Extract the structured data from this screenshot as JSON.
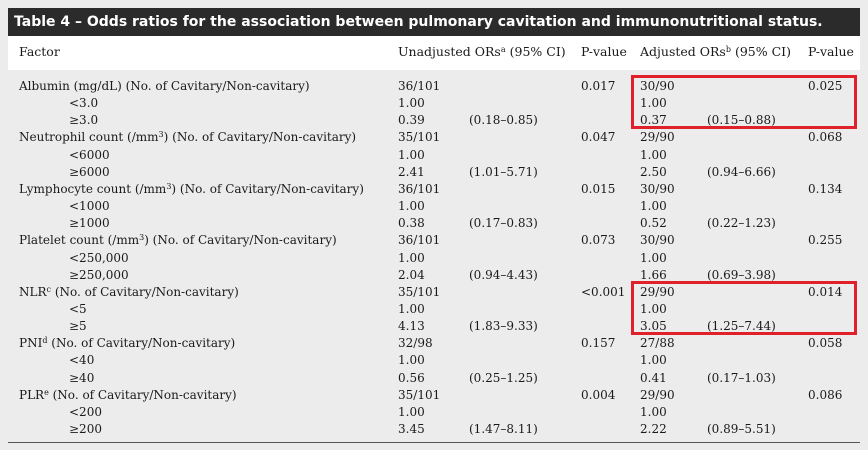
{
  "title": "Table 4 – Odds ratios for the association between pulmonary cavitation and immunonutritional status.",
  "headers": {
    "factor": "Factor",
    "unadjusted": "Unadjusted ORs",
    "unadjusted_sup": "a",
    "unadjusted_ci": "(95% CI)",
    "pvalue1": "P-value",
    "adjusted": "Adjusted ORs",
    "adjusted_sup": "b",
    "adjusted_ci": "(95% CI)",
    "pvalue2": "P-value"
  },
  "rows": [
    {
      "factor": "Albumin (mg/dL) (No. of Cavitary/Non-cavitary)",
      "sup": "",
      "u_or": "36/101",
      "u_ci": "",
      "p1": "0.017",
      "a_or": "30/90",
      "a_ci": "",
      "p2": "0.025"
    },
    {
      "factor": "<3.0",
      "sup": "",
      "u_or": "1.00",
      "u_ci": "",
      "p1": "",
      "a_or": "1.00",
      "a_ci": "",
      "p2": ""
    },
    {
      "factor": "≥3.0",
      "sup": "",
      "u_or": "0.39",
      "u_ci": "(0.18–0.85)",
      "p1": "",
      "a_or": "0.37",
      "a_ci": "(0.15–0.88)",
      "p2": ""
    },
    {
      "factor": "Neutrophil count (/mm",
      "sup": "3",
      "tail": ") (No. of Cavitary/Non-cavitary)",
      "u_or": "35/101",
      "u_ci": "",
      "p1": "0.047",
      "a_or": "29/90",
      "a_ci": "",
      "p2": "0.068"
    },
    {
      "factor": "<6000",
      "sup": "",
      "u_or": "1.00",
      "u_ci": "",
      "p1": "",
      "a_or": "1.00",
      "a_ci": "",
      "p2": ""
    },
    {
      "factor": "≥6000",
      "sup": "",
      "u_or": "2.41",
      "u_ci": "(1.01–5.71)",
      "p1": "",
      "a_or": "2.50",
      "a_ci": "(0.94–6.66)",
      "p2": ""
    },
    {
      "factor": "Lymphocyte count (/mm",
      "sup": "3",
      "tail": ") (No. of Cavitary/Non-cavitary)",
      "u_or": "36/101",
      "u_ci": "",
      "p1": "0.015",
      "a_or": "30/90",
      "a_ci": "",
      "p2": "0.134"
    },
    {
      "factor": "<1000",
      "sup": "",
      "u_or": "1.00",
      "u_ci": "",
      "p1": "",
      "a_or": "1.00",
      "a_ci": "",
      "p2": ""
    },
    {
      "factor": "≥1000",
      "sup": "",
      "u_or": "0.38",
      "u_ci": "(0.17–0.83)",
      "p1": "",
      "a_or": "0.52",
      "a_ci": "(0.22–1.23)",
      "p2": ""
    },
    {
      "factor": "Platelet count (/mm",
      "sup": "3",
      "tail": ") (No. of Cavitary/Non-cavitary)",
      "u_or": "36/101",
      "u_ci": "",
      "p1": "0.073",
      "a_or": "30/90",
      "a_ci": "",
      "p2": "0.255"
    },
    {
      "factor": "<250,000",
      "sup": "",
      "u_or": "1.00",
      "u_ci": "",
      "p1": "",
      "a_or": "1.00",
      "a_ci": "",
      "p2": ""
    },
    {
      "factor": "≥250,000",
      "sup": "",
      "u_or": "2.04",
      "u_ci": "(0.94–4.43)",
      "p1": "",
      "a_or": "1.66",
      "a_ci": "(0.69–3.98)",
      "p2": ""
    },
    {
      "factor": "NLR",
      "sup": "c",
      "tail": " (No. of Cavitary/Non-cavitary)",
      "u_or": "35/101",
      "u_ci": "",
      "p1": "<0.001",
      "a_or": "29/90",
      "a_ci": "",
      "p2": "0.014"
    },
    {
      "factor": "<5",
      "sup": "",
      "u_or": "1.00",
      "u_ci": "",
      "p1": "",
      "a_or": "1.00",
      "a_ci": "",
      "p2": ""
    },
    {
      "factor": "≥5",
      "sup": "",
      "u_or": "4.13",
      "u_ci": "(1.83–9.33)",
      "p1": "",
      "a_or": "3.05",
      "a_ci": "(1.25–7.44)",
      "p2": ""
    },
    {
      "factor": "PNI",
      "sup": "d",
      "tail": " (No. of Cavitary/Non-cavitary)",
      "u_or": "32/98",
      "u_ci": "",
      "p1": "0.157",
      "a_or": "27/88",
      "a_ci": "",
      "p2": "0.058"
    },
    {
      "factor": "<40",
      "sup": "",
      "u_or": "1.00",
      "u_ci": "",
      "p1": "",
      "a_or": "1.00",
      "a_ci": "",
      "p2": ""
    },
    {
      "factor": "≥40",
      "sup": "",
      "u_or": "0.56",
      "u_ci": "(0.25–1.25)",
      "p1": "",
      "a_or": "0.41",
      "a_ci": "(0.17–1.03)",
      "p2": ""
    },
    {
      "factor": "PLR",
      "sup": "e",
      "tail": " (No. of Cavitary/Non-cavitary)",
      "u_or": "35/101",
      "u_ci": "",
      "p1": "0.004",
      "a_or": "29/90",
      "a_ci": "",
      "p2": "0.086"
    },
    {
      "factor": "<200",
      "sup": "",
      "u_or": "1.00",
      "u_ci": "",
      "p1": "",
      "a_or": "1.00",
      "a_ci": "",
      "p2": ""
    },
    {
      "factor": "≥200",
      "sup": "",
      "u_or": "3.45",
      "u_ci": "(1.47–8.11)",
      "p1": "",
      "a_or": "2.22",
      "a_ci": "(0.89–5.51)",
      "p2": ""
    }
  ],
  "colors": {
    "title_bg": "#2b2b2b",
    "body_bg": "#ececec",
    "highlight": "#e0202a"
  }
}
